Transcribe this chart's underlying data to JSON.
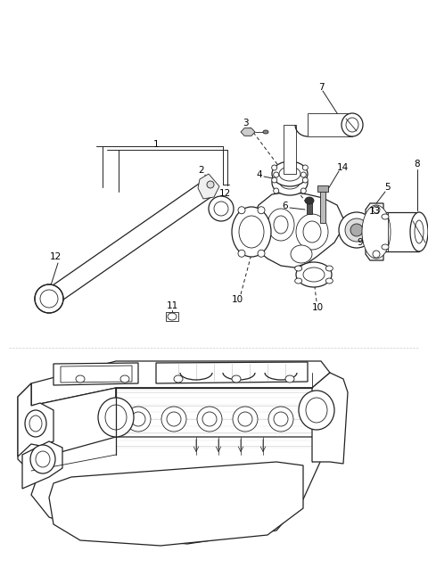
{
  "bg_color": "#ffffff",
  "line_color": "#222222",
  "fig_width": 4.8,
  "fig_height": 6.46,
  "dpi": 100,
  "label_fs": 7.5,
  "lw_main": 0.9,
  "lw_thin": 0.6
}
